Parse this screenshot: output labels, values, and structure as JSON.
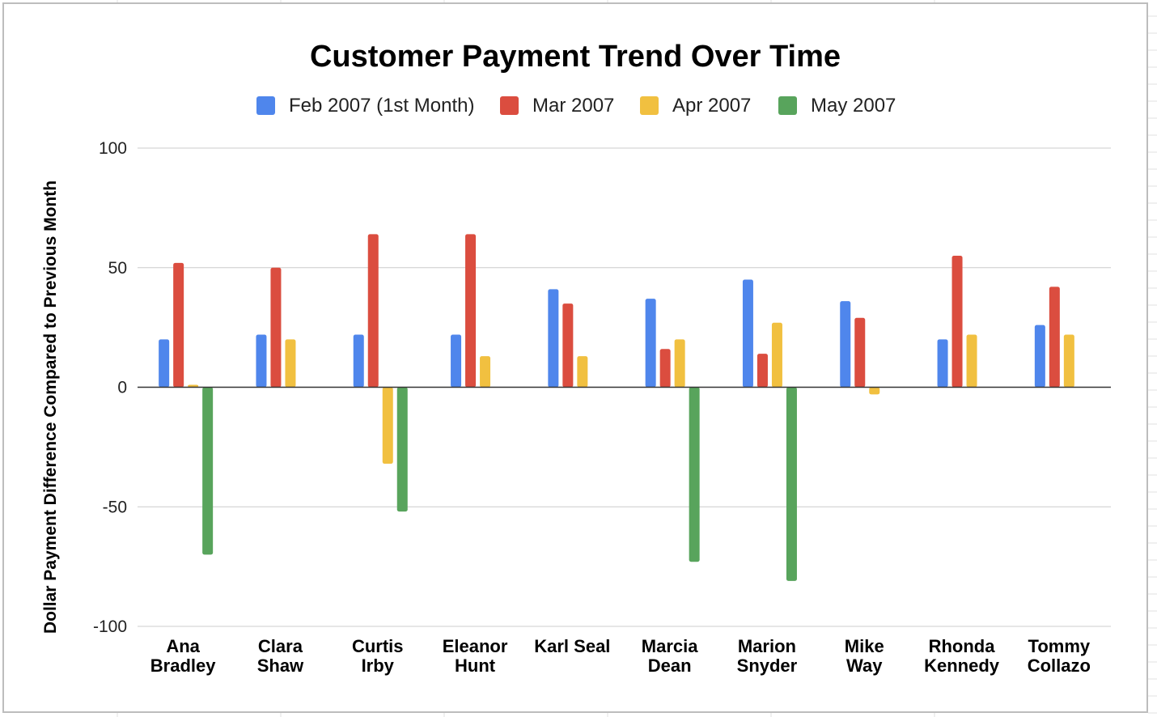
{
  "chart_data": {
    "type": "bar",
    "title": "Customer Payment Trend Over Time",
    "xlabel": "",
    "ylabel": "Dollar Payment Difference Compared to Previous Month",
    "ylim": [
      -100,
      100
    ],
    "yticks": [
      100,
      50,
      0,
      -50,
      -100
    ],
    "yticks_labels": [
      "100",
      "50",
      "0",
      "-50",
      "-100"
    ],
    "grid": true,
    "legend_position": "top",
    "categories": [
      [
        "Ana",
        "Bradley"
      ],
      [
        "Clara",
        "Shaw"
      ],
      [
        "Curtis",
        "Irby"
      ],
      [
        "Eleanor",
        "Hunt"
      ],
      [
        "Karl Seal"
      ],
      [
        "Marcia",
        "Dean"
      ],
      [
        "Marion",
        "Snyder"
      ],
      [
        "Mike",
        "Way"
      ],
      [
        "Rhonda",
        "Kennedy"
      ],
      [
        "Tommy",
        "Collazo"
      ]
    ],
    "series": [
      {
        "name": "Feb 2007 (1st Month)",
        "color": "#4f86ec",
        "values": [
          20,
          22,
          22,
          22,
          41,
          37,
          45,
          36,
          20,
          26
        ]
      },
      {
        "name": "Mar 2007",
        "color": "#db4d3f",
        "values": [
          52,
          50,
          64,
          64,
          35,
          16,
          14,
          29,
          55,
          42
        ]
      },
      {
        "name": "Apr 2007",
        "color": "#f1c040",
        "values": [
          1,
          20,
          -32,
          13,
          13,
          20,
          27,
          -3,
          22,
          22
        ]
      },
      {
        "name": "May 2007",
        "color": "#58a45c",
        "values": [
          -70,
          null,
          -52,
          null,
          null,
          -73,
          -81,
          null,
          null,
          null
        ]
      }
    ]
  }
}
